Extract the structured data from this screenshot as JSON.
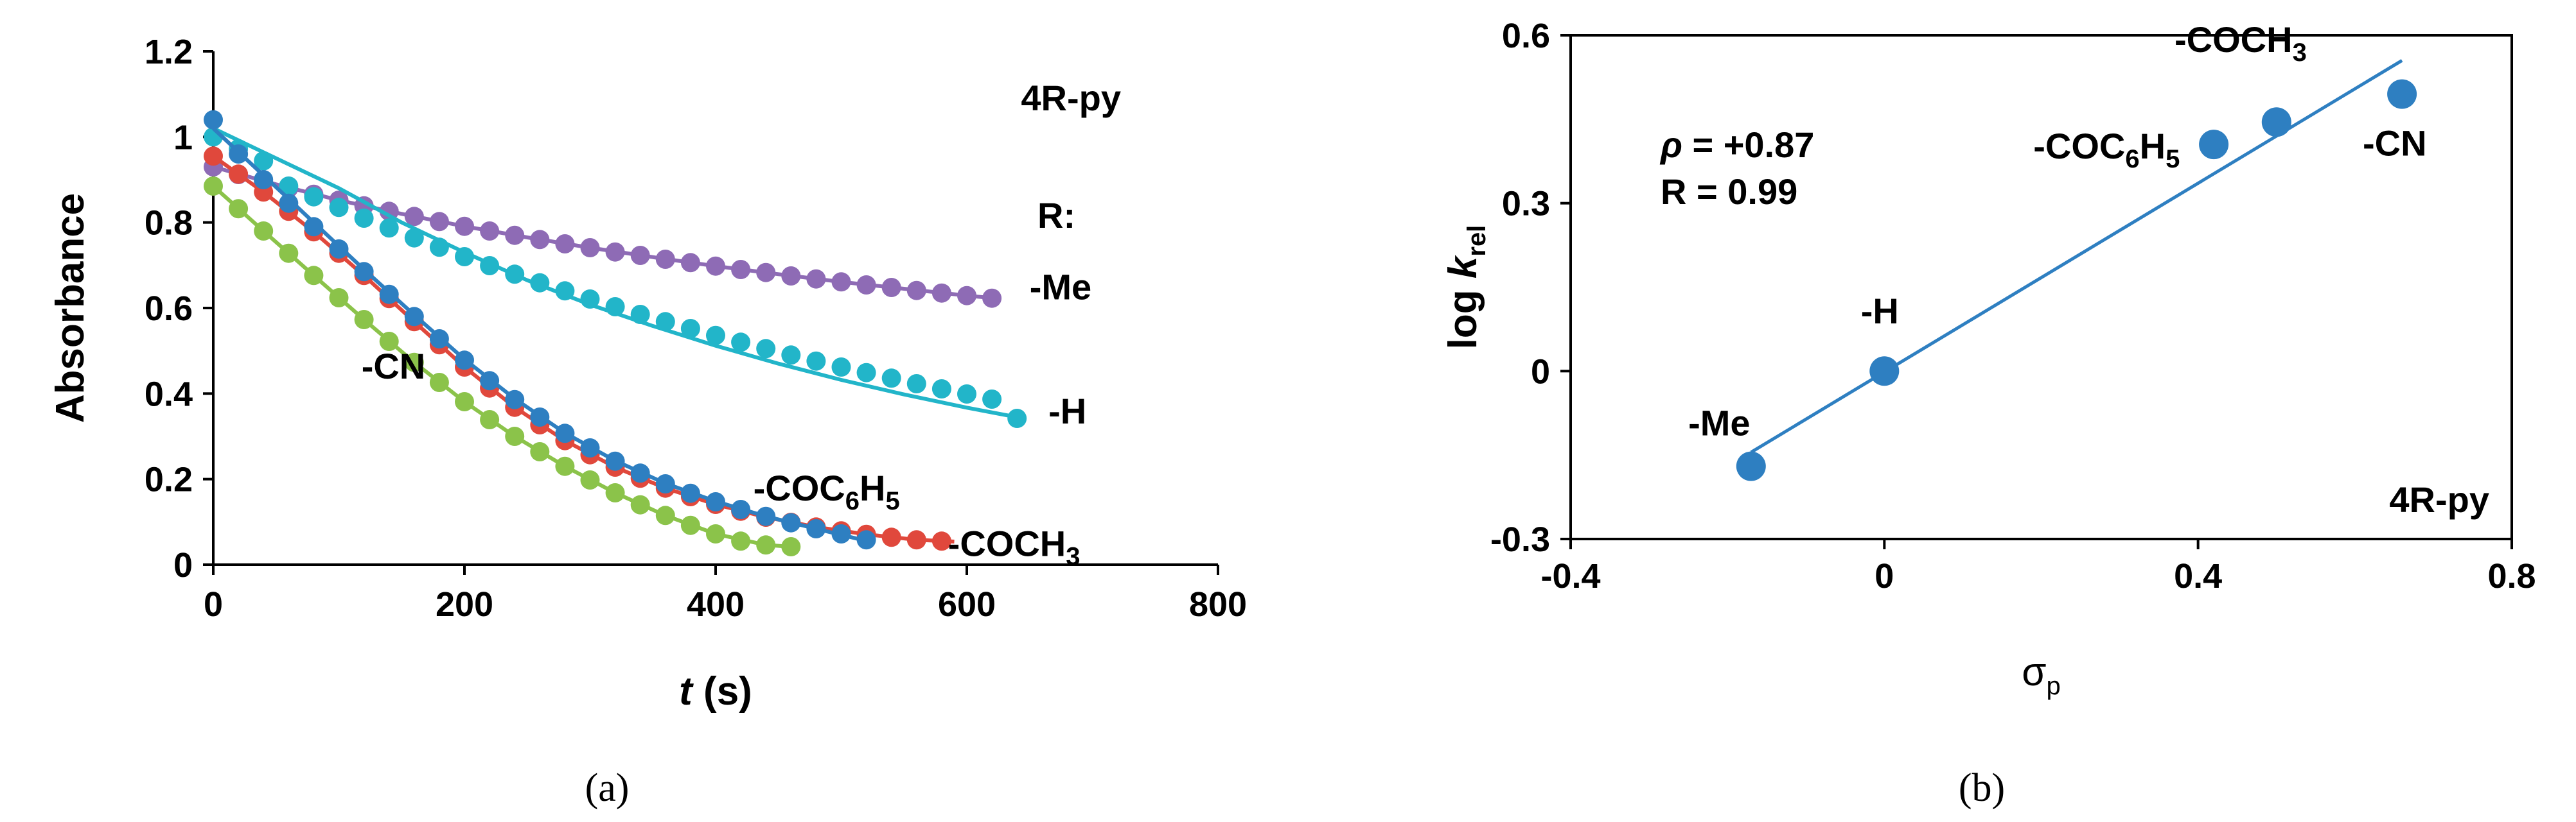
{
  "chart_data": [
    {
      "type": "scatter",
      "panel_label": "(a)",
      "xlabel": {
        "italic": "t",
        "rest": "(s)"
      },
      "ylabel": "Absorbance",
      "xlim": [
        0,
        800
      ],
      "ylim": [
        0,
        1.2
      ],
      "xticks": [
        "0",
        "200",
        "400",
        "600",
        "800"
      ],
      "yticks": [
        "0",
        "0.2",
        "0.4",
        "0.6",
        "0.8",
        "1",
        "1.2"
      ],
      "grid": false,
      "annotations": {
        "compound": "4R-py",
        "r_header": "R:"
      },
      "series": [
        {
          "name": "-Me",
          "label_parts": [
            "-Me"
          ],
          "label_at": [
            650,
            0.62
          ],
          "color": "#8E6BB5",
          "fit_color": "#8E6BB5",
          "x": [
            0,
            20,
            40,
            60,
            80,
            100,
            120,
            140,
            160,
            180,
            200,
            220,
            240,
            260,
            280,
            300,
            320,
            340,
            360,
            380,
            400,
            420,
            440,
            460,
            480,
            500,
            520,
            540,
            560,
            580,
            600,
            620
          ],
          "y": [
            0.93,
            0.912,
            0.895,
            0.88,
            0.866,
            0.852,
            0.839,
            0.826,
            0.814,
            0.802,
            0.791,
            0.78,
            0.77,
            0.76,
            0.75,
            0.741,
            0.731,
            0.723,
            0.714,
            0.706,
            0.698,
            0.69,
            0.683,
            0.675,
            0.668,
            0.661,
            0.654,
            0.648,
            0.641,
            0.635,
            0.629,
            0.623
          ],
          "fit": {
            "x": [
              0,
              50,
              100,
              150,
              200,
              250,
              300,
              350,
              400,
              450,
              500,
              550,
              600,
              625
            ],
            "y": [
              0.93,
              0.889,
              0.852,
              0.82,
              0.791,
              0.765,
              0.741,
              0.719,
              0.698,
              0.679,
              0.661,
              0.645,
              0.629,
              0.622
            ]
          }
        },
        {
          "name": "-H",
          "label_parts": [
            "-H"
          ],
          "label_at": [
            665,
            0.33
          ],
          "color": "#22B5C9",
          "fit_color": "#22B5C9",
          "x": [
            0,
            20,
            40,
            60,
            80,
            100,
            120,
            140,
            160,
            180,
            200,
            220,
            240,
            260,
            280,
            300,
            320,
            340,
            360,
            380,
            400,
            420,
            440,
            460,
            480,
            500,
            520,
            540,
            560,
            580,
            600,
            620,
            640
          ],
          "y": [
            1.0,
            0.972,
            0.944,
            0.885,
            0.86,
            0.835,
            0.81,
            0.787,
            0.764,
            0.742,
            0.72,
            0.699,
            0.679,
            0.659,
            0.64,
            0.621,
            0.603,
            0.585,
            0.568,
            0.552,
            0.536,
            0.52,
            0.505,
            0.49,
            0.476,
            0.462,
            0.449,
            0.436,
            0.423,
            0.411,
            0.399,
            0.387,
            0.342
          ],
          "fit": {
            "x": [
              0,
              50,
              100,
              150,
              200,
              250,
              300,
              350,
              400,
              450,
              500,
              550,
              600,
              645
            ],
            "y": [
              1.02,
              0.95,
              0.88,
              0.8,
              0.73,
              0.665,
              0.608,
              0.558,
              0.512,
              0.47,
              0.432,
              0.398,
              0.367,
              0.342
            ]
          }
        },
        {
          "name": "-CN",
          "label_parts": [
            "-CN"
          ],
          "label_at": [
            118,
            0.435
          ],
          "color": "#8BC34A",
          "fit_color": "#8BC34A",
          "x": [
            0,
            20,
            40,
            60,
            80,
            100,
            120,
            140,
            160,
            180,
            200,
            220,
            240,
            260,
            280,
            300,
            320,
            340,
            360,
            380,
            400,
            420,
            440,
            460
          ],
          "y": [
            0.885,
            0.832,
            0.78,
            0.728,
            0.676,
            0.624,
            0.573,
            0.522,
            0.473,
            0.426,
            0.381,
            0.339,
            0.3,
            0.264,
            0.23,
            0.198,
            0.168,
            0.14,
            0.115,
            0.092,
            0.072,
            0.055,
            0.046,
            0.042
          ],
          "fit": {
            "x": [
              0,
              40,
              80,
              120,
              160,
              200,
              240,
              280,
              320,
              360,
              400,
              440,
              460
            ],
            "y": [
              0.885,
              0.78,
              0.676,
              0.573,
              0.473,
              0.381,
              0.3,
              0.23,
              0.168,
              0.115,
              0.072,
              0.046,
              0.042
            ]
          }
        },
        {
          "name": "-COCH3",
          "label_parts": [
            "-COCH",
            "3"
          ],
          "label_at": [
            585,
            0.02
          ],
          "color": "#E0483C",
          "fit_color": "#E0483C",
          "x": [
            0,
            20,
            40,
            60,
            80,
            100,
            120,
            140,
            160,
            180,
            200,
            220,
            240,
            260,
            280,
            300,
            320,
            340,
            360,
            380,
            400,
            420,
            440,
            460,
            480,
            500,
            520,
            540,
            560,
            580
          ],
          "y": [
            0.955,
            0.913,
            0.871,
            0.826,
            0.778,
            0.728,
            0.676,
            0.622,
            0.568,
            0.514,
            0.462,
            0.413,
            0.368,
            0.327,
            0.29,
            0.257,
            0.228,
            0.202,
            0.179,
            0.159,
            0.141,
            0.125,
            0.111,
            0.099,
            0.088,
            0.079,
            0.071,
            0.064,
            0.058,
            0.055
          ],
          "fit": {
            "x": [
              0,
              40,
              80,
              120,
              160,
              200,
              240,
              280,
              320,
              360,
              400,
              440,
              480,
              520,
              560,
              590
            ],
            "y": [
              0.955,
              0.871,
              0.778,
              0.676,
              0.568,
              0.462,
              0.368,
              0.29,
              0.228,
              0.179,
              0.141,
              0.111,
              0.088,
              0.071,
              0.058,
              0.054
            ]
          }
        },
        {
          "name": "-COC6H5",
          "label_parts": [
            "-COC",
            "6",
            "H",
            "5"
          ],
          "label_at": [
            430,
            0.15
          ],
          "color": "#2E7FC1",
          "fit_color": "#2E7FC1",
          "x": [
            0,
            20,
            40,
            60,
            80,
            100,
            120,
            140,
            160,
            180,
            200,
            220,
            240,
            260,
            280,
            300,
            320,
            340,
            360,
            380,
            400,
            420,
            440,
            460,
            480,
            500,
            520
          ],
          "y": [
            1.04,
            0.96,
            0.9,
            0.845,
            0.79,
            0.738,
            0.685,
            0.632,
            0.58,
            0.528,
            0.478,
            0.43,
            0.386,
            0.345,
            0.307,
            0.273,
            0.242,
            0.214,
            0.189,
            0.167,
            0.147,
            0.129,
            0.113,
            0.098,
            0.084,
            0.072,
            0.058
          ],
          "fit": {
            "x": [
              0,
              40,
              80,
              120,
              160,
              200,
              240,
              280,
              320,
              360,
              400,
              440,
              480,
              525
            ],
            "y": [
              1.02,
              0.91,
              0.8,
              0.69,
              0.584,
              0.48,
              0.388,
              0.308,
              0.243,
              0.19,
              0.148,
              0.113,
              0.084,
              0.052
            ]
          }
        }
      ]
    },
    {
      "type": "scatter",
      "panel_label": "(b)",
      "xlabel": {
        "main": "σ",
        "sub": "p"
      },
      "ylabel": {
        "main": "log ",
        "italic": "k",
        "sub": "rel"
      },
      "xlim": [
        -0.4,
        0.8
      ],
      "ylim": [
        -0.3,
        0.6
      ],
      "xticks": [
        "-0.4",
        "0",
        "0.4",
        "0.8"
      ],
      "yticks": [
        "-0.3",
        "0",
        "0.3",
        "0.6"
      ],
      "grid": false,
      "color": "#2E7FC1",
      "annotations": {
        "rho_symbol": "ρ",
        "rho_value": "= +0.87",
        "r_text": "R = 0.99",
        "compound": "4R-py"
      },
      "points": [
        {
          "label": "-Me",
          "label_parts": [
            "-Me"
          ],
          "label_color": "#666666",
          "x": -0.17,
          "y": -0.17,
          "label_at": [
            -0.25,
            -0.115
          ]
        },
        {
          "label": "-H",
          "label_parts": [
            "-H"
          ],
          "label_color": "#000000",
          "x": 0.0,
          "y": 0.0,
          "label_at": [
            -0.03,
            0.085
          ]
        },
        {
          "label": "-COC6H5",
          "label_parts": [
            "-COC",
            "6",
            "H",
            "5"
          ],
          "label_color": "#000000",
          "x": 0.42,
          "y": 0.405,
          "label_at": [
            0.19,
            0.38
          ]
        },
        {
          "label": "-COCH3",
          "label_parts": [
            "-COCH",
            "3"
          ],
          "label_color": "#000000",
          "x": 0.5,
          "y": 0.445,
          "label_at": [
            0.37,
            0.57
          ]
        },
        {
          "label": "-CN",
          "label_parts": [
            "-CN"
          ],
          "label_color": "#000000",
          "x": 0.66,
          "y": 0.495,
          "label_at": [
            0.61,
            0.385
          ]
        }
      ],
      "fit": {
        "x": [
          -0.17,
          0.66
        ],
        "y": [
          -0.145,
          0.555
        ]
      }
    }
  ]
}
